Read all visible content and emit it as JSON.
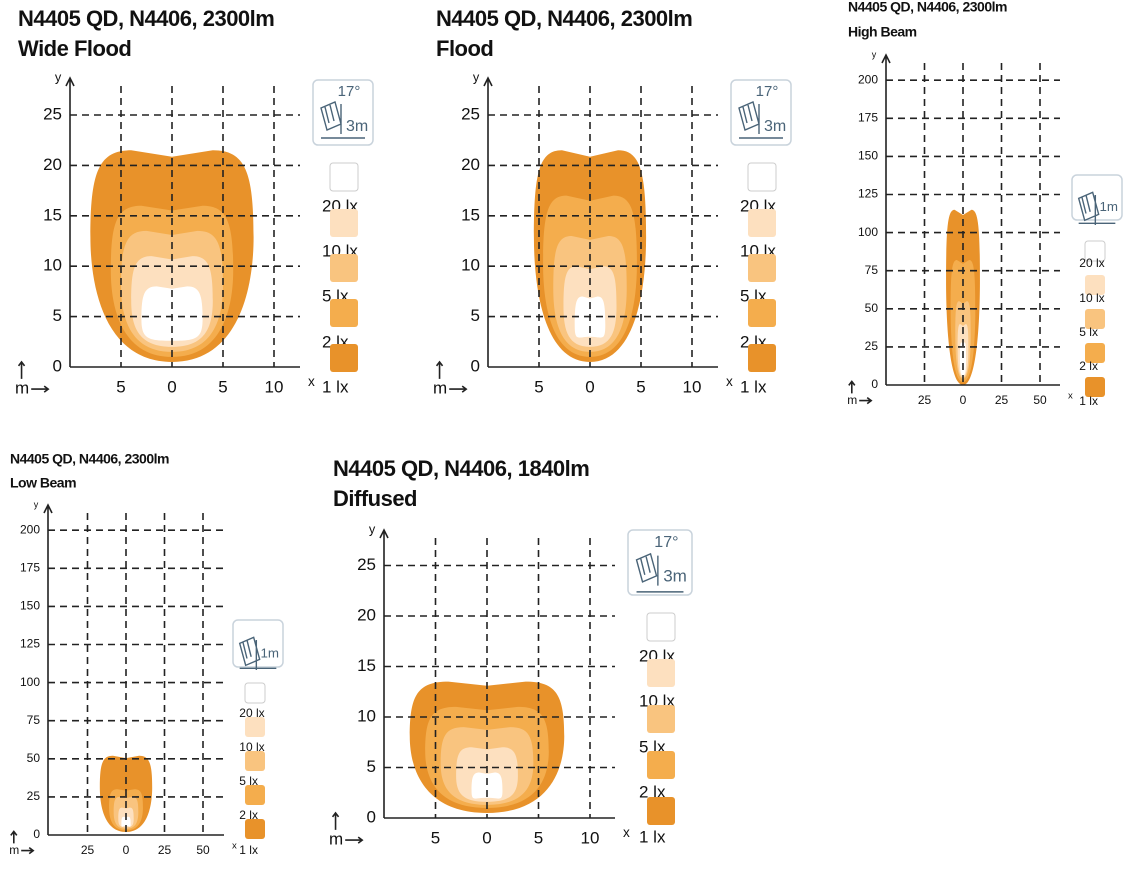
{
  "panels": [
    {
      "title": "N4405 QD, N4406, 2300lm",
      "subtitle": "Wide Flood",
      "y_label": "y",
      "x_label": "x",
      "unit": "m",
      "xticks": [
        "5",
        "0",
        "5",
        "10"
      ],
      "yticks": [
        "0",
        "5",
        "10",
        "15",
        "20",
        "25"
      ],
      "icon": {
        "angle": "17°",
        "distance": "3m"
      },
      "legend": [
        "20 lx",
        "10 lx",
        "5 lx",
        "2 lx",
        "1 lx"
      ]
    },
    {
      "title": "N4405 QD, N4406, 2300lm",
      "subtitle": "Flood",
      "y_label": "y",
      "x_label": "x",
      "unit": "m",
      "xticks": [
        "5",
        "0",
        "5",
        "10"
      ],
      "yticks": [
        "0",
        "5",
        "10",
        "15",
        "20",
        "25"
      ],
      "icon": {
        "angle": "17°",
        "distance": "3m"
      },
      "legend": [
        "20 lx",
        "10 lx",
        "5 lx",
        "2 lx",
        "1 lx"
      ]
    },
    {
      "title": "N4405 QD, N4406, 2300lm",
      "subtitle": "High Beam",
      "y_label": "y",
      "x_label": "x",
      "unit": "m",
      "xticks": [
        "25",
        "0",
        "25",
        "50"
      ],
      "yticks": [
        "0",
        "25",
        "50",
        "75",
        "100",
        "125",
        "150",
        "175",
        "200"
      ],
      "icon": {
        "distance": "1m"
      },
      "legend": [
        "20 lx",
        "10 lx",
        "5 lx",
        "2 lx",
        "1 lx"
      ]
    },
    {
      "title": "N4405 QD, N4406, 2300lm",
      "subtitle": "Low Beam",
      "y_label": "y",
      "x_label": "x",
      "unit": "m",
      "xticks": [
        "25",
        "0",
        "25",
        "50"
      ],
      "yticks": [
        "0",
        "25",
        "50",
        "75",
        "100",
        "125",
        "150",
        "175",
        "200"
      ],
      "icon": {
        "distance": "1m"
      },
      "legend": [
        "20 lx",
        "10 lx",
        "5 lx",
        "2 lx",
        "1 lx"
      ]
    },
    {
      "title": "N4405 QD, N4406, 1840lm",
      "subtitle": "Diffused",
      "y_label": "y",
      "x_label": "x",
      "unit": "m",
      "xticks": [
        "5",
        "0",
        "5",
        "10"
      ],
      "yticks": [
        "0",
        "5",
        "10",
        "15",
        "20",
        "25"
      ],
      "icon": {
        "angle": "17°",
        "distance": "3m"
      },
      "legend": [
        "20 lx",
        "10 lx",
        "5 lx",
        "2 lx",
        "1 lx"
      ]
    }
  ]
}
